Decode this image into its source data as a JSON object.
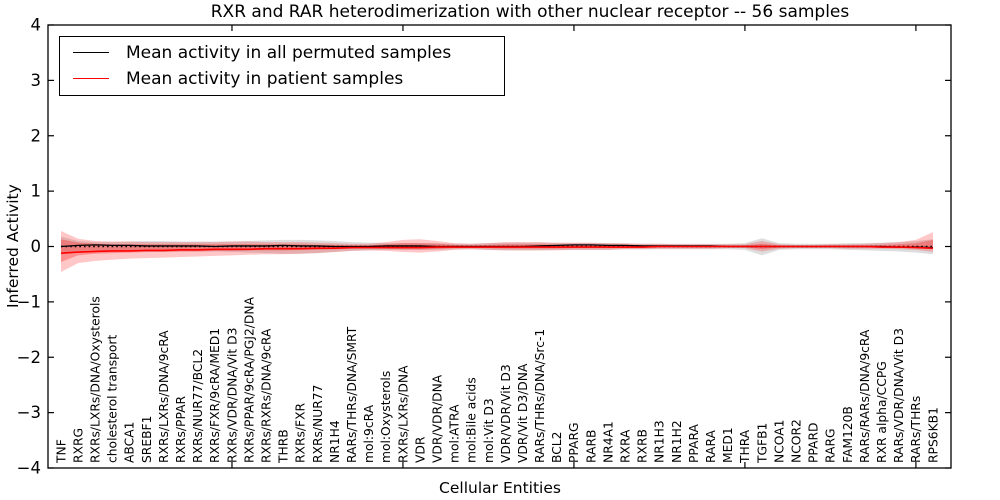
{
  "title": "RXR and RAR heterodimerization with other nuclear receptor -- 56 samples",
  "legend": {
    "items": [
      {
        "label": "Mean activity in all permuted samples",
        "color": "#000000"
      },
      {
        "label": "Mean activity in patient samples",
        "color": "#ff0000"
      }
    ]
  },
  "chart_data": {
    "type": "line",
    "title": "RXR and RAR heterodimerization with other nuclear receptor -- 56 samples",
    "xlabel": "Cellular Entities",
    "ylabel": "Inferred Activity",
    "ylim": [
      -4,
      4
    ],
    "yticks": [
      -4,
      -3,
      -2,
      -1,
      0,
      1,
      2,
      3,
      4
    ],
    "grid": false,
    "legend_position": "upper left",
    "zero_line": 0,
    "colors": {
      "permuted_mean": "#000000",
      "patient_mean": "#ff0000",
      "permuted_band": "rgba(0,0,0,0.13)",
      "patient_band_outer": "rgba(255,0,0,0.22)",
      "patient_band_inner": "rgba(255,0,0,0.28)"
    },
    "categories": [
      "TNF",
      "RXRG",
      "RXRs/LXRs/DNA/Oxysterols",
      "cholesterol transport",
      "ABCA1",
      "SREBF1",
      "RXRs/LXRs/DNA/9cRA",
      "RXRs/PPAR",
      "RXRs/NUR77/BCL2",
      "RXRs/FXR/9cRA/MED1",
      "RXRs/VDR/DNA/Vit D3",
      "RXRs/PPAR/9cRA/PGJ2/DNA",
      "RXRs/RXRs/DNA/9cRA",
      "THRB",
      "RXRs/FXR",
      "RXRs/NUR77",
      "NR1H4",
      "RARs/THRs/DNA/SMRT",
      "mol:9cRA",
      "mol:Oxysterols",
      "RXRs/LXRs/DNA",
      "VDR",
      "VDR/VDR/DNA",
      "mol:ATRA",
      "mol:Bile acids",
      "mol:Vit D3",
      "VDR/VDR/Vit D3",
      "VDR/Vit D3/DNA",
      "RARs/THRs/DNA/Src-1",
      "BCL2",
      "PPARG",
      "RARB",
      "NR4A1",
      "RXRA",
      "RXRB",
      "NR1H3",
      "NR1H2",
      "PPARA",
      "RARA",
      "MED1",
      "THRA",
      "TGFB1",
      "NCOA1",
      "NCOR2",
      "PPARD",
      "RARG",
      "FAM120B",
      "RARs/RARs/DNA/9cRA",
      "RXR alpha/CCPG",
      "RARs/VDR/DNA/Vit D3",
      "RARs/THRs",
      "RPS6KB1"
    ],
    "series": [
      {
        "name": "Mean activity in all permuted samples",
        "color": "#000000",
        "values": [
          0.0,
          0.02,
          0.03,
          0.02,
          0.02,
          0.01,
          0.01,
          0.01,
          0.01,
          0.0,
          0.01,
          0.01,
          0.01,
          0.02,
          0.01,
          0.01,
          0.0,
          0.0,
          0.0,
          0.01,
          0.01,
          0.01,
          0.0,
          0.0,
          0.0,
          0.0,
          0.0,
          0.0,
          0.01,
          0.02,
          0.03,
          0.03,
          0.02,
          0.02,
          0.01,
          0.01,
          0.01,
          0.01,
          0.01,
          0.0,
          0.0,
          0.0,
          0.0,
          0.0,
          0.0,
          0.0,
          0.0,
          0.0,
          0.0,
          -0.01,
          -0.01,
          -0.02
        ]
      },
      {
        "name": "Mean activity in patient samples",
        "color": "#ff0000",
        "values": [
          -0.12,
          -0.1,
          -0.09,
          -0.08,
          -0.08,
          -0.07,
          -0.07,
          -0.06,
          -0.06,
          -0.05,
          -0.05,
          -0.05,
          -0.04,
          -0.04,
          -0.04,
          -0.03,
          -0.03,
          -0.02,
          -0.02,
          -0.02,
          -0.02,
          -0.02,
          -0.01,
          -0.01,
          -0.01,
          -0.01,
          -0.01,
          -0.01,
          -0.01,
          -0.01,
          -0.01,
          -0.01,
          -0.01,
          -0.01,
          -0.01,
          0.0,
          0.0,
          0.0,
          0.0,
          0.0,
          0.0,
          0.0,
          0.0,
          0.0,
          0.0,
          0.0,
          0.0,
          0.0,
          -0.01,
          -0.01,
          -0.02,
          -0.03
        ]
      }
    ],
    "bands": [
      {
        "name": "permuted_range",
        "color": "rgba(0,0,0,0.13)",
        "hi": [
          0.18,
          0.1,
          0.08,
          0.08,
          0.09,
          0.1,
          0.1,
          0.09,
          0.09,
          0.09,
          0.09,
          0.1,
          0.11,
          0.12,
          0.12,
          0.11,
          0.1,
          0.08,
          0.07,
          0.06,
          0.06,
          0.06,
          0.06,
          0.05,
          0.05,
          0.06,
          0.07,
          0.07,
          0.07,
          0.06,
          0.06,
          0.06,
          0.06,
          0.05,
          0.05,
          0.05,
          0.05,
          0.05,
          0.05,
          0.05,
          0.06,
          0.15,
          0.06,
          0.05,
          0.05,
          0.05,
          0.06,
          0.06,
          0.07,
          0.08,
          0.1,
          0.13
        ],
        "lo": [
          -0.12,
          -0.08,
          -0.07,
          -0.08,
          -0.09,
          -0.1,
          -0.1,
          -0.09,
          -0.09,
          -0.09,
          -0.1,
          -0.11,
          -0.12,
          -0.13,
          -0.13,
          -0.12,
          -0.1,
          -0.08,
          -0.07,
          -0.06,
          -0.06,
          -0.06,
          -0.06,
          -0.05,
          -0.05,
          -0.06,
          -0.07,
          -0.07,
          -0.07,
          -0.06,
          -0.06,
          -0.06,
          -0.06,
          -0.05,
          -0.05,
          -0.05,
          -0.05,
          -0.05,
          -0.05,
          -0.05,
          -0.06,
          -0.16,
          -0.06,
          -0.05,
          -0.05,
          -0.05,
          -0.06,
          -0.07,
          -0.08,
          -0.09,
          -0.11,
          -0.14
        ]
      },
      {
        "name": "patient_range_outer",
        "color": "rgba(255,0,0,0.22)",
        "hi": [
          0.28,
          0.14,
          0.1,
          0.09,
          0.09,
          0.08,
          0.08,
          0.08,
          0.08,
          0.08,
          0.09,
          0.09,
          0.08,
          0.08,
          0.08,
          0.07,
          0.06,
          0.05,
          0.05,
          0.08,
          0.12,
          0.13,
          0.1,
          0.06,
          0.05,
          0.06,
          0.08,
          0.08,
          0.08,
          0.07,
          0.07,
          0.07,
          0.06,
          0.06,
          0.05,
          0.05,
          0.04,
          0.04,
          0.04,
          0.04,
          0.04,
          0.1,
          0.04,
          0.03,
          0.03,
          0.04,
          0.04,
          0.05,
          0.06,
          0.08,
          0.12,
          0.26
        ],
        "lo": [
          -0.46,
          -0.3,
          -0.26,
          -0.24,
          -0.22,
          -0.21,
          -0.2,
          -0.19,
          -0.18,
          -0.17,
          -0.16,
          -0.15,
          -0.14,
          -0.14,
          -0.13,
          -0.12,
          -0.1,
          -0.08,
          -0.07,
          -0.08,
          -0.1,
          -0.11,
          -0.09,
          -0.06,
          -0.05,
          -0.06,
          -0.07,
          -0.07,
          -0.07,
          -0.07,
          -0.06,
          -0.06,
          -0.06,
          -0.05,
          -0.05,
          -0.04,
          -0.04,
          -0.04,
          -0.04,
          -0.03,
          -0.03,
          -0.09,
          -0.04,
          -0.03,
          -0.03,
          -0.03,
          -0.04,
          -0.04,
          -0.04,
          -0.05,
          -0.06,
          -0.1
        ]
      },
      {
        "name": "patient_range_inner",
        "color": "rgba(255,0,0,0.28)",
        "hi": [
          0.13,
          0.07,
          0.05,
          0.04,
          0.04,
          0.04,
          0.04,
          0.04,
          0.04,
          0.04,
          0.04,
          0.04,
          0.04,
          0.04,
          0.04,
          0.03,
          0.03,
          0.02,
          0.02,
          0.04,
          0.06,
          0.06,
          0.05,
          0.03,
          0.02,
          0.03,
          0.04,
          0.04,
          0.04,
          0.03,
          0.03,
          0.03,
          0.03,
          0.03,
          0.02,
          0.02,
          0.02,
          0.02,
          0.02,
          0.02,
          0.02,
          0.05,
          0.02,
          0.015,
          0.015,
          0.02,
          0.02,
          0.02,
          0.03,
          0.04,
          0.06,
          0.12
        ],
        "lo": [
          -0.28,
          -0.16,
          -0.13,
          -0.12,
          -0.11,
          -0.1,
          -0.1,
          -0.09,
          -0.09,
          -0.08,
          -0.08,
          -0.07,
          -0.07,
          -0.07,
          -0.06,
          -0.06,
          -0.05,
          -0.04,
          -0.035,
          -0.04,
          -0.05,
          -0.055,
          -0.045,
          -0.03,
          -0.025,
          -0.03,
          -0.035,
          -0.035,
          -0.035,
          -0.035,
          -0.03,
          -0.03,
          -0.03,
          -0.025,
          -0.025,
          -0.02,
          -0.02,
          -0.02,
          -0.02,
          -0.015,
          -0.015,
          -0.045,
          -0.02,
          -0.015,
          -0.015,
          -0.015,
          -0.02,
          -0.02,
          -0.02,
          -0.025,
          -0.03,
          -0.05
        ]
      }
    ]
  }
}
